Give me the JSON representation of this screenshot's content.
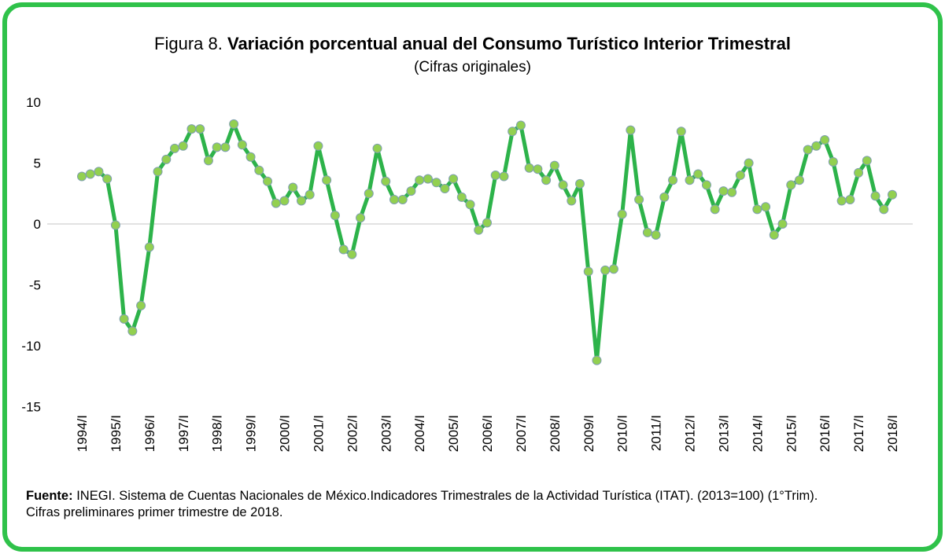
{
  "chart_data": {
    "type": "line",
    "title_label": "Figura 8.",
    "title": "Variación porcentual anual del Consumo Turístico Interior Trimestral",
    "subtitle": "(Cifras originales)",
    "categories": [
      "1994/I",
      null,
      null,
      null,
      "1995/I",
      null,
      null,
      null,
      "1996/I",
      null,
      null,
      null,
      "1997/I",
      null,
      null,
      null,
      "1998/I",
      null,
      null,
      null,
      "1999/I",
      null,
      null,
      null,
      "2000/I",
      null,
      null,
      null,
      "2001/I",
      null,
      null,
      null,
      "2002/I",
      null,
      null,
      null,
      "2003/I",
      null,
      null,
      null,
      "2004/I",
      null,
      null,
      null,
      "2005/I",
      null,
      null,
      null,
      "2006/I",
      null,
      null,
      null,
      "2007/I",
      null,
      null,
      null,
      "2008/I",
      null,
      null,
      null,
      "2009/I",
      null,
      null,
      null,
      "2010/I",
      null,
      null,
      null,
      "2011/I",
      null,
      null,
      null,
      "2012/I",
      null,
      null,
      null,
      "2013/I",
      null,
      null,
      null,
      "2014/I",
      null,
      null,
      null,
      "2015/I",
      null,
      null,
      null,
      "2016/I",
      null,
      null,
      null,
      "2017/I",
      null,
      null,
      null,
      "2018/I"
    ],
    "series": [
      {
        "color": "#2db34a",
        "marker_color": "#92d050",
        "values": [
          3.9,
          4.1,
          4.3,
          3.7,
          -0.1,
          -7.8,
          -8.8,
          -6.7,
          -1.9,
          4.3,
          5.3,
          6.2,
          6.4,
          7.8,
          7.8,
          5.2,
          6.3,
          6.3,
          8.2,
          6.5,
          5.5,
          4.4,
          3.5,
          1.7,
          1.9,
          3.0,
          1.9,
          2.4,
          6.4,
          3.6,
          0.7,
          -2.1,
          -2.5,
          0.5,
          2.5,
          6.2,
          3.5,
          2.0,
          2.0,
          2.7,
          3.6,
          3.7,
          3.4,
          2.9,
          3.7,
          2.2,
          1.6,
          -0.5,
          0.1,
          4.0,
          3.9,
          7.6,
          8.1,
          4.6,
          4.5,
          3.6,
          4.8,
          3.2,
          1.9,
          3.3,
          -3.9,
          -11.2,
          -3.8,
          -3.7,
          0.8,
          7.7,
          2.0,
          -0.7,
          -0.9,
          2.2,
          3.6,
          7.6,
          3.6,
          4.1,
          3.2,
          1.2,
          2.7,
          2.6,
          4.0,
          5.0,
          1.2,
          1.4,
          -0.9,
          0.0,
          3.2,
          3.6,
          6.1,
          6.4,
          6.9,
          5.1,
          1.9,
          2.0,
          4.2,
          5.2,
          2.3,
          1.2,
          2.4
        ]
      }
    ],
    "ylim": [
      -15,
      10
    ],
    "yticks": [
      -15,
      -10,
      -5,
      0,
      5,
      10
    ],
    "grid": false,
    "source_label": "Fuente:",
    "source": "INEGI. Sistema de Cuentas Nacionales de México.Indicadores Trimestrales de la Actividad Turística (ITAT). (2013=100) (1°Trim).",
    "note": "Cifras preliminares primer trimestre de 2018."
  }
}
